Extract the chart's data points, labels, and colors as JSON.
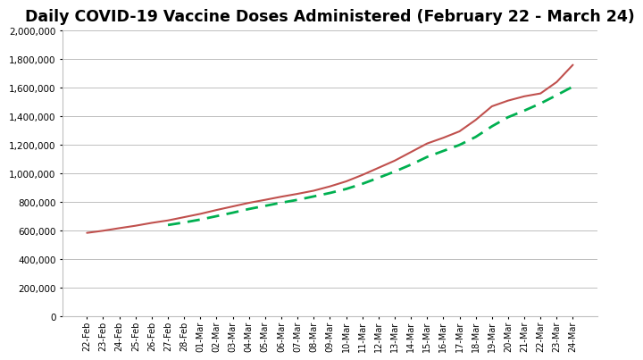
{
  "title": "Daily COVID-19 Vaccine Doses Administered (February 22 - March 24)",
  "dates": [
    "22-Feb",
    "23-Feb",
    "24-Feb",
    "25-Feb",
    "26-Feb",
    "27-Feb",
    "28-Feb",
    "01-Mar",
    "02-Mar",
    "03-Mar",
    "04-Mar",
    "05-Mar",
    "06-Mar",
    "07-Mar",
    "08-Mar",
    "09-Mar",
    "10-Mar",
    "11-Mar",
    "12-Mar",
    "13-Mar",
    "14-Mar",
    "15-Mar",
    "16-Mar",
    "17-Mar",
    "18-Mar",
    "19-Mar",
    "20-Mar",
    "21-Mar",
    "22-Mar",
    "23-Mar",
    "24-Mar"
  ],
  "cumulative": [
    585000,
    600000,
    618000,
    635000,
    655000,
    672000,
    695000,
    718000,
    745000,
    770000,
    795000,
    816000,
    838000,
    858000,
    880000,
    910000,
    945000,
    990000,
    1040000,
    1090000,
    1150000,
    1210000,
    1250000,
    1295000,
    1375000,
    1470000,
    1510000,
    1540000,
    1560000,
    1640000,
    1760000
  ],
  "moving_avg": [
    null,
    null,
    null,
    null,
    null,
    640000,
    658000,
    678000,
    702000,
    726000,
    752000,
    774000,
    796000,
    816000,
    840000,
    864000,
    892000,
    928000,
    970000,
    1014000,
    1062000,
    1116000,
    1158000,
    1200000,
    1256000,
    1330000,
    1394000,
    1440000,
    1490000,
    1548000,
    1608000
  ],
  "ylim": [
    0,
    2000000
  ],
  "yticks": [
    0,
    200000,
    400000,
    600000,
    800000,
    1000000,
    1200000,
    1400000,
    1600000,
    1800000,
    2000000
  ],
  "line_color": "#c0504d",
  "moving_avg_color": "#00b050",
  "background_color": "#ffffff",
  "grid_color": "#bfbfbf",
  "title_fontsize": 12.5
}
